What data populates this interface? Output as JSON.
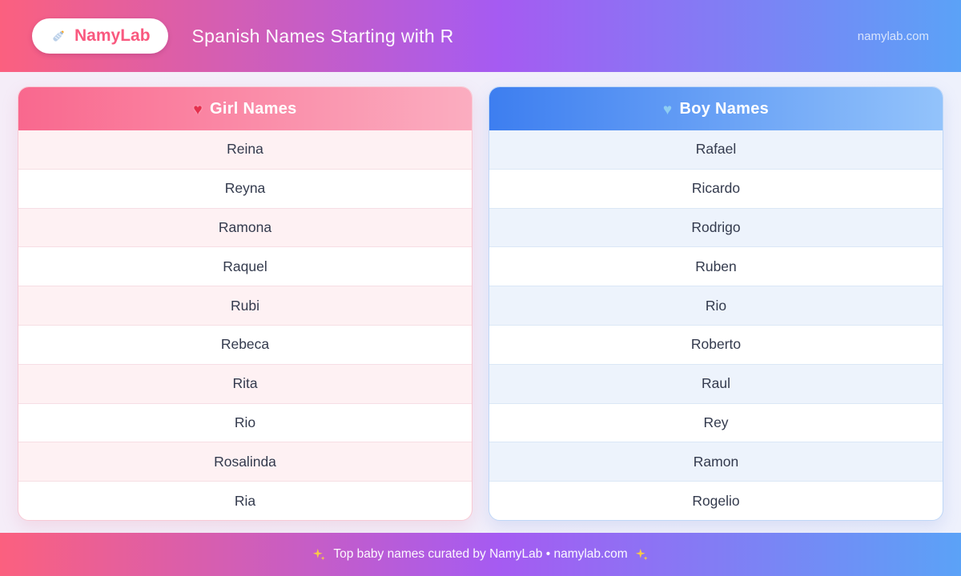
{
  "header": {
    "logo_text": "NamyLab",
    "title": "Spanish Names Starting with R",
    "site": "namylab.com"
  },
  "cards": [
    {
      "title": "Girl Names",
      "heart_glyph": "♥",
      "names": [
        "Reina",
        "Reyna",
        "Ramona",
        "Raquel",
        "Rubi",
        "Rebeca",
        "Rita",
        "Rio",
        "Rosalinda",
        "Ria"
      ]
    },
    {
      "title": "Boy Names",
      "heart_glyph": "♥",
      "names": [
        "Rafael",
        "Ricardo",
        "Rodrigo",
        "Ruben",
        "Rio",
        "Roberto",
        "Raul",
        "Rey",
        "Ramon",
        "Rogelio"
      ]
    }
  ],
  "footer": {
    "text": "Top baby names curated by NamyLab • namylab.com"
  },
  "colors": {
    "header_g1": "#fb607f",
    "header_g2": "#a55bf2",
    "header_g3": "#5ba2f7",
    "girl_h1": "#f9688e",
    "girl_h2": "#fbadc0",
    "boy_h1": "#3d7ef0",
    "boy_h2": "#93c3fb",
    "girl_row": "#fef1f3",
    "boy_row": "#edf3fc",
    "girl_border": "#f8c9d4",
    "boy_border": "#bfd7f7",
    "girl_heart": "#e5304e",
    "boy_heart": "#8ecdf2",
    "name_text": "#333a4d",
    "brand_text": "#f9597f",
    "page_bg1": "#f5edf8",
    "page_bg2": "#eef1fc"
  }
}
